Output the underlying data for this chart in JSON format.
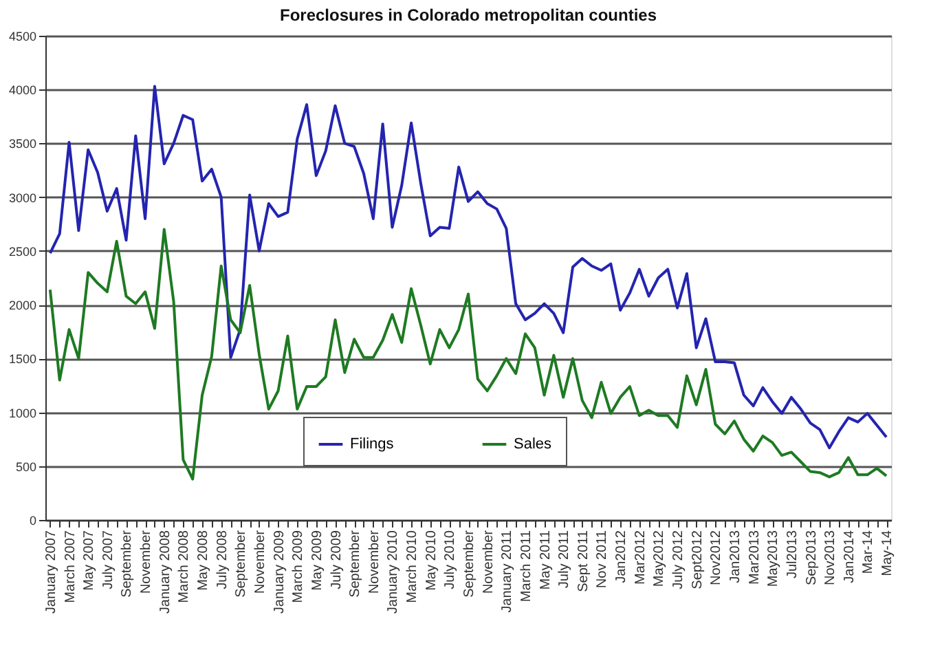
{
  "chart_data": {
    "type": "line",
    "title": "Foreclosures in Colorado metropolitan counties",
    "categories": [
      "January 2007",
      null,
      "March 2007",
      null,
      "May 2007",
      null,
      "July 2007",
      null,
      "September",
      null,
      "November",
      null,
      "January 2008",
      null,
      "March 2008",
      null,
      "May 2008",
      null,
      "July 2008",
      null,
      "September",
      null,
      "November",
      null,
      "January 2009",
      null,
      "March 2009",
      null,
      "May 2009",
      null,
      "July 2009",
      null,
      "September",
      null,
      "November",
      null,
      "January 2010",
      null,
      "March 2010",
      null,
      "May 2010",
      null,
      "July 2010",
      null,
      "September",
      null,
      "November",
      null,
      "January 2011",
      null,
      "March 2011",
      null,
      "May 2011",
      null,
      "July 2011",
      null,
      "Sept 2011",
      null,
      "Nov 2011",
      null,
      "Jan2012",
      null,
      "Mar2012",
      null,
      "May2012",
      null,
      "July 2012",
      null,
      "Sept2012",
      null,
      "Nov2012",
      null,
      "Jan2013",
      null,
      "Mar2013",
      null,
      "May2013",
      null,
      "Jul2013",
      null,
      "Sep2013",
      null,
      "Nov2013",
      null,
      "Jan2014",
      null,
      "Mar-14",
      null,
      "May-14"
    ],
    "series": [
      {
        "name": "Filings",
        "color": "#2424b0",
        "values": [
          2480,
          2660,
          3510,
          2690,
          3440,
          3230,
          2870,
          3080,
          2600,
          3570,
          2800,
          4030,
          3310,
          3500,
          3760,
          3720,
          3150,
          3260,
          3000,
          1510,
          1770,
          3020,
          2500,
          2940,
          2820,
          2860,
          3540,
          3860,
          3200,
          3430,
          3850,
          3500,
          3470,
          3220,
          2800,
          3680,
          2720,
          3110,
          3690,
          3130,
          2640,
          2720,
          2710,
          3280,
          2960,
          3050,
          2940,
          2890,
          2710,
          2010,
          1860,
          1920,
          2010,
          1920,
          1740,
          2350,
          2430,
          2360,
          2320,
          2380,
          1950,
          2110,
          2330,
          2080,
          2250,
          2330,
          1970,
          2290,
          1600,
          1870,
          1470,
          1470,
          1460,
          1160,
          1060,
          1230,
          1100,
          990,
          1140,
          1030,
          900,
          840,
          670,
          820,
          950,
          910,
          990,
          880,
          770
        ]
      },
      {
        "name": "Sales",
        "color": "#1e7a22",
        "values": [
          2140,
          1300,
          1770,
          1500,
          2300,
          2200,
          2120,
          2590,
          2080,
          2010,
          2120,
          1780,
          2700,
          2030,
          560,
          380,
          1160,
          1520,
          2360,
          1860,
          1740,
          2180,
          1540,
          1030,
          1200,
          1710,
          1030,
          1240,
          1240,
          1330,
          1860,
          1370,
          1680,
          1510,
          1510,
          1670,
          1910,
          1650,
          2150,
          1810,
          1450,
          1770,
          1600,
          1770,
          2100,
          1310,
          1200,
          1340,
          1500,
          1360,
          1730,
          1600,
          1160,
          1530,
          1140,
          1500,
          1110,
          950,
          1280,
          990,
          1140,
          1240,
          970,
          1020,
          970,
          970,
          860,
          1340,
          1070,
          1400,
          890,
          800,
          920,
          750,
          640,
          780,
          720,
          600,
          630,
          540,
          450,
          440,
          400,
          440,
          580,
          420,
          420,
          480,
          410
        ]
      }
    ],
    "ylim": [
      0,
      4500
    ],
    "yticks": [
      0,
      500,
      1000,
      1500,
      2000,
      2500,
      3000,
      3500,
      4000,
      4500
    ],
    "grid": "y",
    "legend": "bottom",
    "line_style": "solid",
    "marker": "none"
  }
}
